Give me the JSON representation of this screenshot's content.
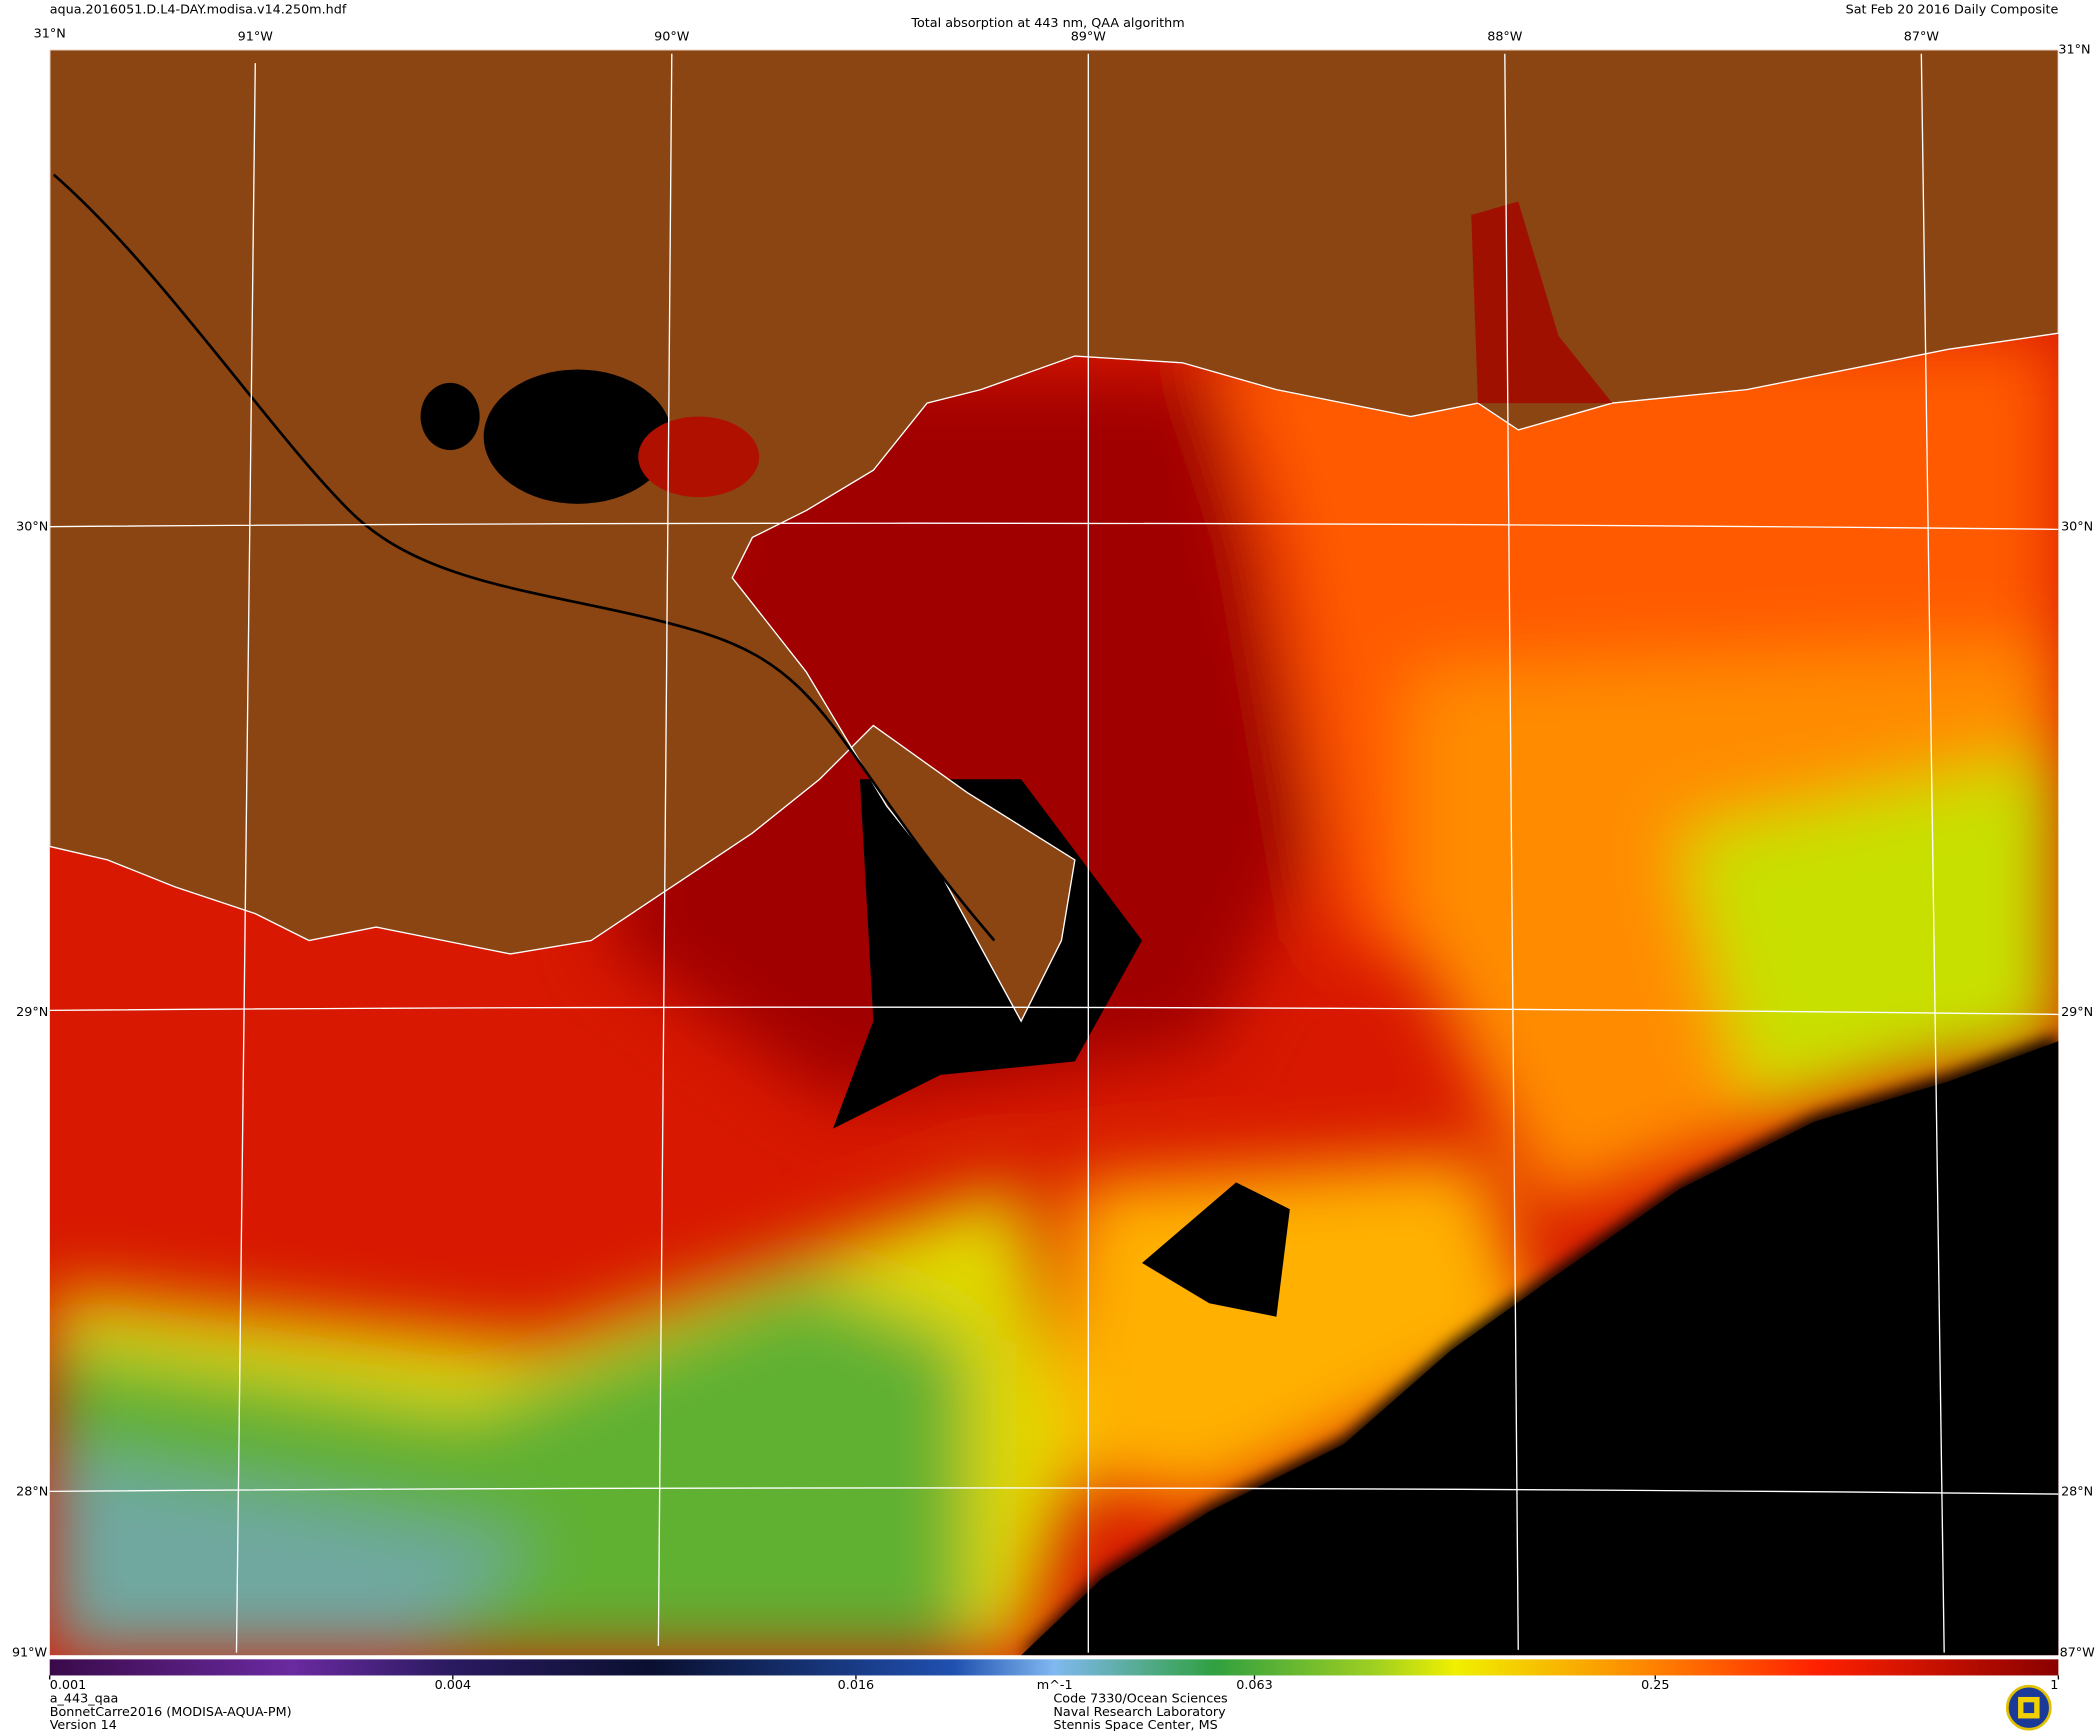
{
  "header": {
    "filename": "aqua.2016051.D.L4-DAY.modisa.v14.250m.hdf",
    "title": "Total absorption at 443 nm, QAA algorithm",
    "date": "Sat Feb 20 2016 Daily Composite"
  },
  "map": {
    "lon_labels_top": [
      "91°W",
      "90°W",
      "89°W",
      "88°W",
      "87°W"
    ],
    "lat_labels_left": [
      "30°N",
      "29°N",
      "28°N"
    ],
    "lat_labels_right": [
      "30°N",
      "29°N",
      "28°N"
    ],
    "corner_labels": {
      "top_left": "31°N",
      "top_right": "31°N",
      "bottom_left": "91°W",
      "bottom_right": "87°W"
    }
  },
  "colorbar": {
    "scale": "log",
    "lim": [
      0.001,
      1
    ],
    "ticks": [
      0.001,
      0.004,
      0.016,
      0.063,
      0.25,
      1
    ],
    "unit": "m^-1"
  },
  "footer": {
    "left": [
      "a_443_qaa",
      "BonnetCarre2016 (MODISA-AQUA-PM)",
      "Version 14"
    ],
    "right": [
      "Code 7330/Ocean Sciences",
      "Naval Research Laboratory",
      "Stennis Space Center, MS"
    ]
  }
}
